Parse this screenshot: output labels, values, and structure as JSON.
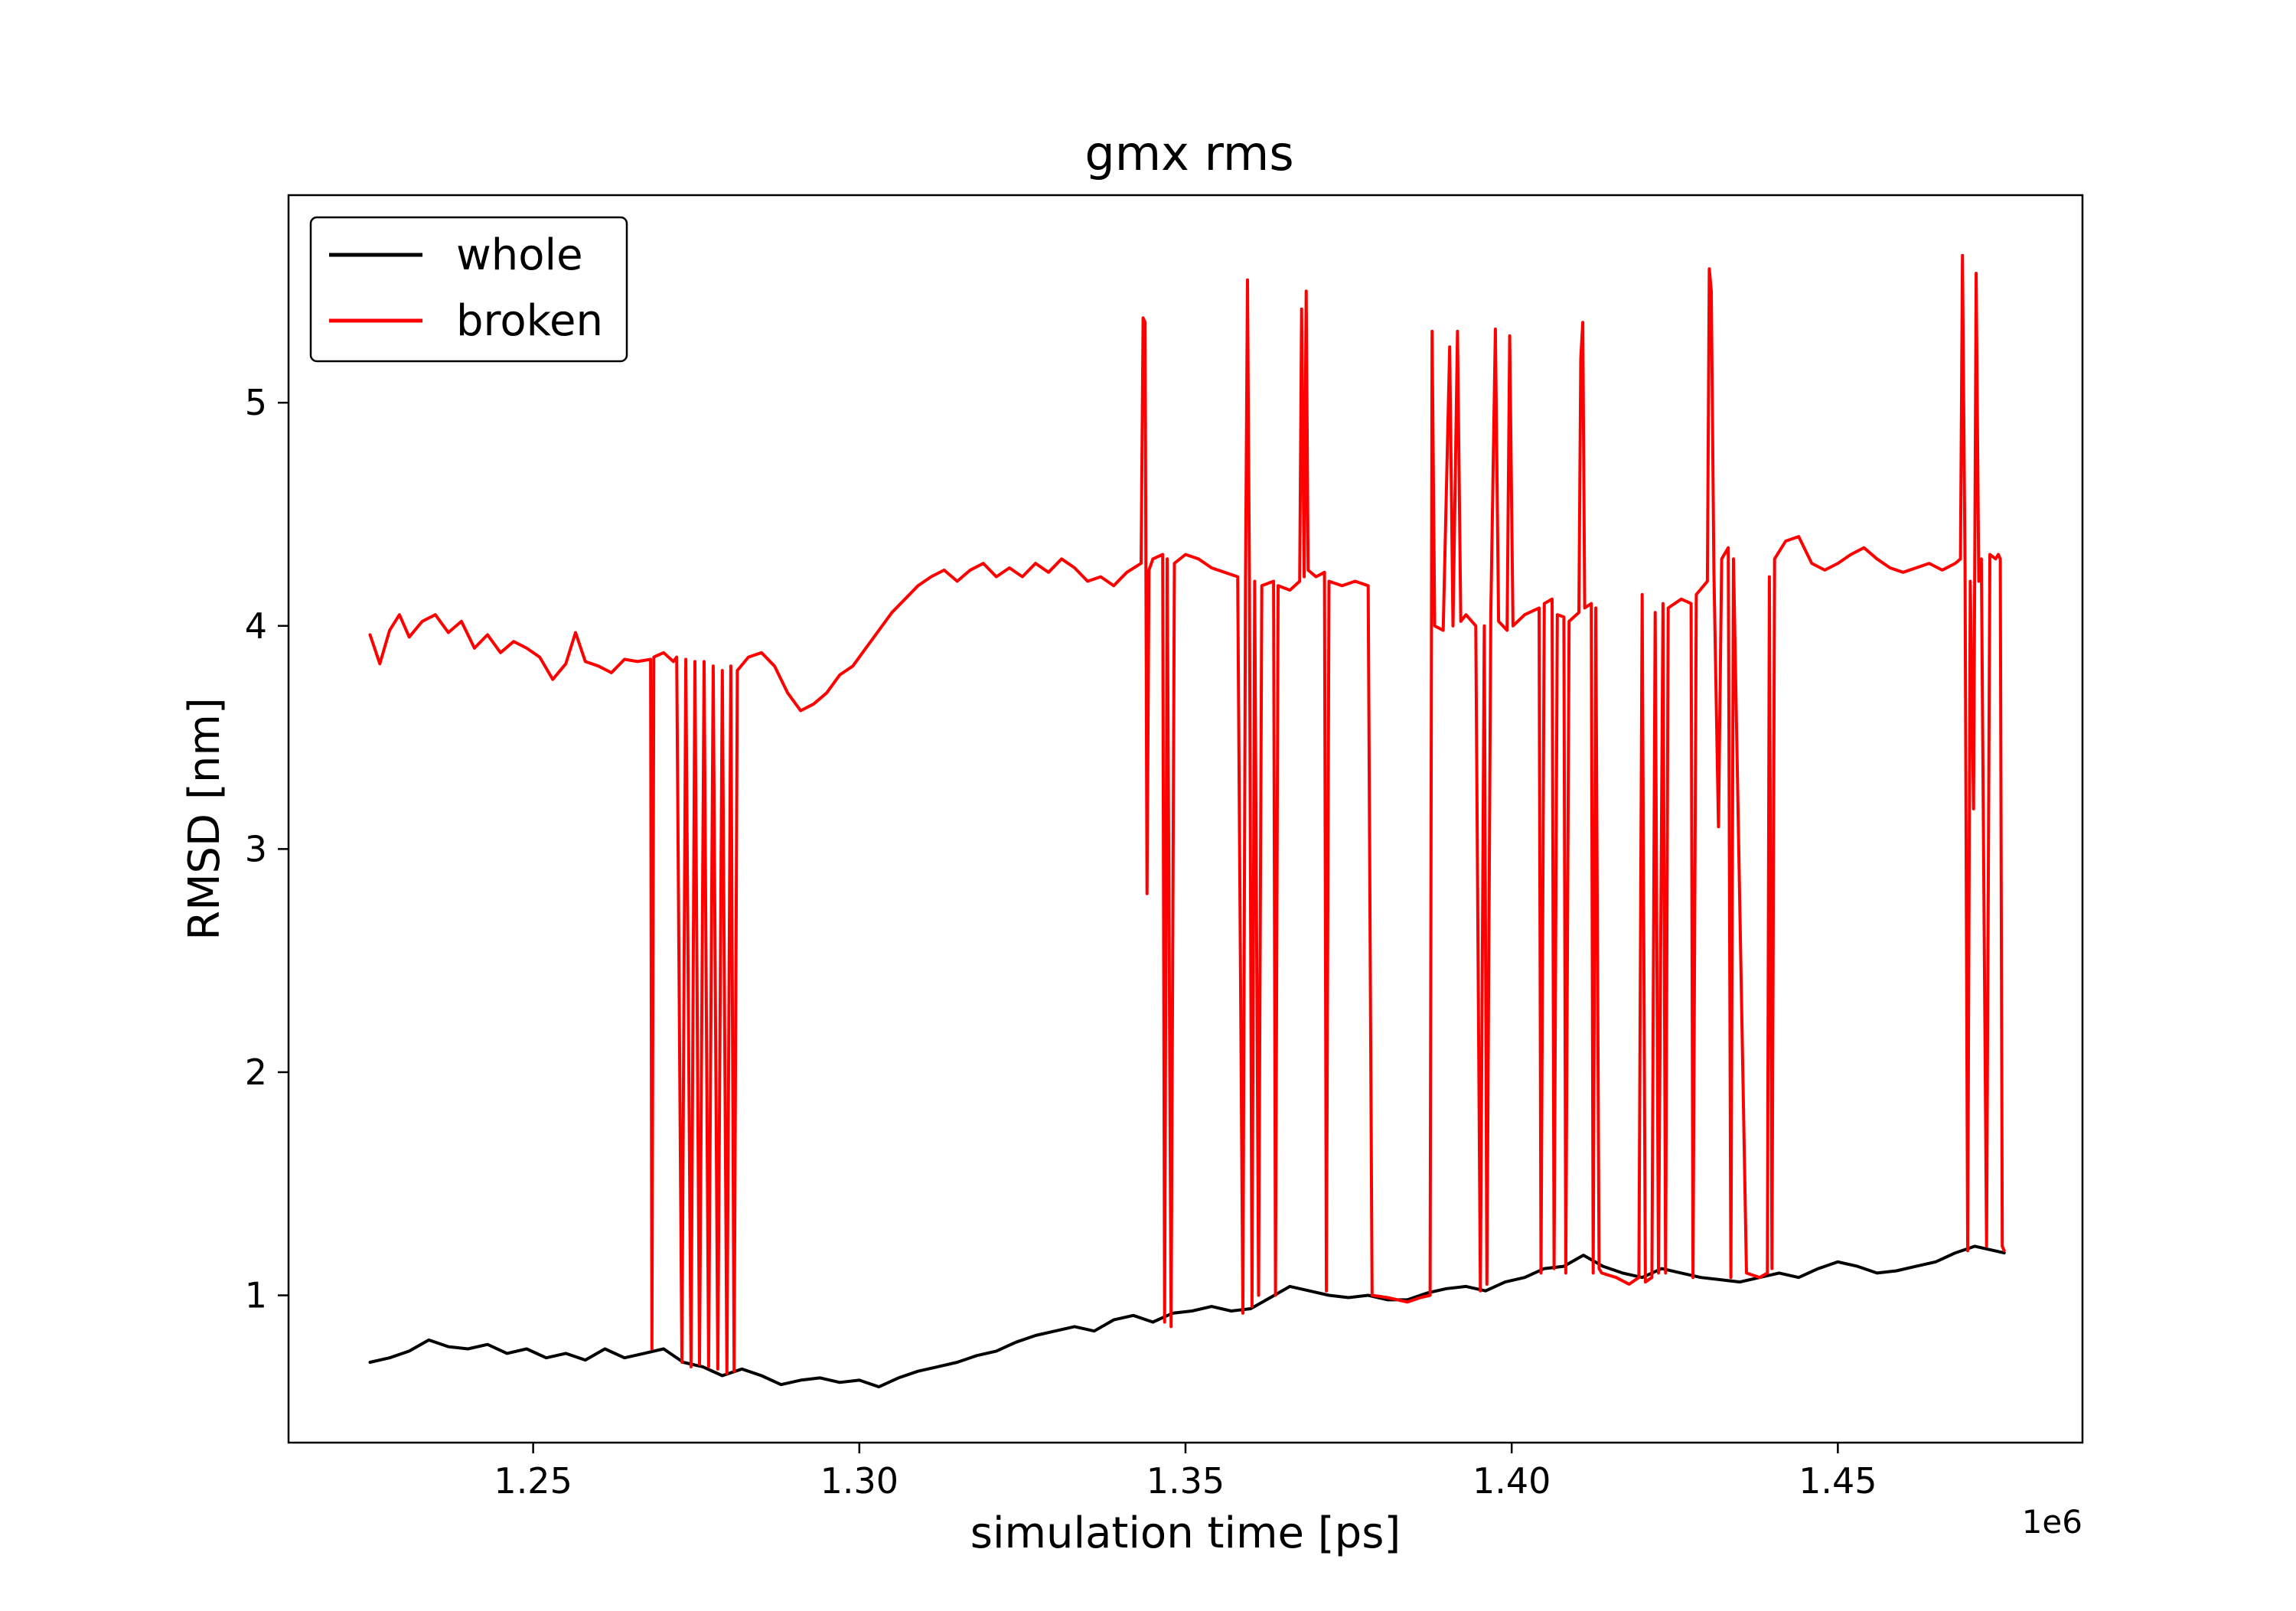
{
  "chart_data": {
    "type": "line",
    "title": "gmx rms",
    "xlabel": "simulation time [ps]",
    "ylabel": "RMSD [nm]",
    "x_offset_label": "1e6",
    "xlim": [
      1.2125,
      1.4875
    ],
    "ylim": [
      0.34,
      5.93
    ],
    "xticks": [
      1.25,
      1.3,
      1.35,
      1.4,
      1.45
    ],
    "xtick_labels": [
      "1.25",
      "1.30",
      "1.35",
      "1.40",
      "1.45"
    ],
    "yticks": [
      1,
      2,
      3,
      4,
      5
    ],
    "ytick_labels": [
      "1",
      "2",
      "3",
      "4",
      "5"
    ],
    "grid": false,
    "legend_position": "upper-left",
    "series": [
      {
        "name": "whole",
        "color": "#000000",
        "points": [
          [
            1.225,
            0.7
          ],
          [
            1.228,
            0.72
          ],
          [
            1.231,
            0.75
          ],
          [
            1.234,
            0.8
          ],
          [
            1.237,
            0.77
          ],
          [
            1.24,
            0.76
          ],
          [
            1.243,
            0.78
          ],
          [
            1.246,
            0.74
          ],
          [
            1.249,
            0.76
          ],
          [
            1.252,
            0.72
          ],
          [
            1.255,
            0.74
          ],
          [
            1.258,
            0.71
          ],
          [
            1.261,
            0.76
          ],
          [
            1.264,
            0.72
          ],
          [
            1.267,
            0.74
          ],
          [
            1.27,
            0.76
          ],
          [
            1.273,
            0.7
          ],
          [
            1.276,
            0.68
          ],
          [
            1.279,
            0.64
          ],
          [
            1.282,
            0.67
          ],
          [
            1.285,
            0.64
          ],
          [
            1.288,
            0.6
          ],
          [
            1.291,
            0.62
          ],
          [
            1.294,
            0.63
          ],
          [
            1.297,
            0.61
          ],
          [
            1.3,
            0.62
          ],
          [
            1.303,
            0.59
          ],
          [
            1.306,
            0.63
          ],
          [
            1.309,
            0.66
          ],
          [
            1.312,
            0.68
          ],
          [
            1.315,
            0.7
          ],
          [
            1.318,
            0.73
          ],
          [
            1.321,
            0.75
          ],
          [
            1.324,
            0.79
          ],
          [
            1.327,
            0.82
          ],
          [
            1.33,
            0.84
          ],
          [
            1.333,
            0.86
          ],
          [
            1.336,
            0.84
          ],
          [
            1.339,
            0.89
          ],
          [
            1.342,
            0.91
          ],
          [
            1.345,
            0.88
          ],
          [
            1.348,
            0.92
          ],
          [
            1.351,
            0.93
          ],
          [
            1.354,
            0.95
          ],
          [
            1.357,
            0.93
          ],
          [
            1.36,
            0.94
          ],
          [
            1.363,
            0.99
          ],
          [
            1.366,
            1.04
          ],
          [
            1.369,
            1.02
          ],
          [
            1.372,
            1.0
          ],
          [
            1.375,
            0.99
          ],
          [
            1.378,
            1.0
          ],
          [
            1.381,
            0.98
          ],
          [
            1.384,
            0.98
          ],
          [
            1.387,
            1.01
          ],
          [
            1.39,
            1.03
          ],
          [
            1.393,
            1.04
          ],
          [
            1.396,
            1.02
          ],
          [
            1.399,
            1.06
          ],
          [
            1.402,
            1.08
          ],
          [
            1.405,
            1.12
          ],
          [
            1.408,
            1.13
          ],
          [
            1.411,
            1.18
          ],
          [
            1.414,
            1.13
          ],
          [
            1.417,
            1.1
          ],
          [
            1.42,
            1.08
          ],
          [
            1.423,
            1.12
          ],
          [
            1.426,
            1.1
          ],
          [
            1.429,
            1.08
          ],
          [
            1.432,
            1.07
          ],
          [
            1.435,
            1.06
          ],
          [
            1.438,
            1.08
          ],
          [
            1.441,
            1.1
          ],
          [
            1.444,
            1.08
          ],
          [
            1.447,
            1.12
          ],
          [
            1.45,
            1.15
          ],
          [
            1.453,
            1.13
          ],
          [
            1.456,
            1.1
          ],
          [
            1.459,
            1.11
          ],
          [
            1.462,
            1.13
          ],
          [
            1.465,
            1.15
          ],
          [
            1.468,
            1.19
          ],
          [
            1.471,
            1.22
          ],
          [
            1.474,
            1.2
          ],
          [
            1.4755,
            1.19
          ]
        ]
      },
      {
        "name": "broken",
        "color": "#ff0000",
        "points": [
          [
            1.225,
            3.96
          ],
          [
            1.2265,
            3.83
          ],
          [
            1.228,
            3.98
          ],
          [
            1.2295,
            4.05
          ],
          [
            1.231,
            3.95
          ],
          [
            1.233,
            4.02
          ],
          [
            1.235,
            4.05
          ],
          [
            1.237,
            3.97
          ],
          [
            1.239,
            4.02
          ],
          [
            1.241,
            3.9
          ],
          [
            1.243,
            3.96
          ],
          [
            1.245,
            3.88
          ],
          [
            1.247,
            3.93
          ],
          [
            1.249,
            3.9
          ],
          [
            1.251,
            3.86
          ],
          [
            1.253,
            3.76
          ],
          [
            1.255,
            3.83
          ],
          [
            1.2565,
            3.97
          ],
          [
            1.258,
            3.84
          ],
          [
            1.26,
            3.82
          ],
          [
            1.262,
            3.79
          ],
          [
            1.264,
            3.85
          ],
          [
            1.266,
            3.84
          ],
          [
            1.268,
            3.85
          ],
          [
            1.2682,
            0.76
          ],
          [
            1.2685,
            3.86
          ],
          [
            1.27,
            3.88
          ],
          [
            1.2715,
            3.84
          ],
          [
            1.272,
            3.86
          ],
          [
            1.2728,
            0.7
          ],
          [
            1.2734,
            3.85
          ],
          [
            1.2742,
            0.68
          ],
          [
            1.2748,
            3.84
          ],
          [
            1.2755,
            0.69
          ],
          [
            1.2762,
            3.84
          ],
          [
            1.2769,
            0.68
          ],
          [
            1.2776,
            3.82
          ],
          [
            1.2783,
            0.67
          ],
          [
            1.279,
            3.8
          ],
          [
            1.2797,
            0.65
          ],
          [
            1.2803,
            3.82
          ],
          [
            1.2808,
            0.66
          ],
          [
            1.2813,
            3.8
          ],
          [
            1.283,
            3.86
          ],
          [
            1.285,
            3.88
          ],
          [
            1.287,
            3.82
          ],
          [
            1.289,
            3.7
          ],
          [
            1.291,
            3.62
          ],
          [
            1.293,
            3.65
          ],
          [
            1.295,
            3.7
          ],
          [
            1.297,
            3.78
          ],
          [
            1.299,
            3.82
          ],
          [
            1.301,
            3.9
          ],
          [
            1.303,
            3.98
          ],
          [
            1.305,
            4.06
          ],
          [
            1.307,
            4.12
          ],
          [
            1.309,
            4.18
          ],
          [
            1.311,
            4.22
          ],
          [
            1.313,
            4.25
          ],
          [
            1.315,
            4.2
          ],
          [
            1.317,
            4.25
          ],
          [
            1.319,
            4.28
          ],
          [
            1.321,
            4.22
          ],
          [
            1.323,
            4.26
          ],
          [
            1.325,
            4.22
          ],
          [
            1.327,
            4.28
          ],
          [
            1.329,
            4.24
          ],
          [
            1.331,
            4.3
          ],
          [
            1.333,
            4.26
          ],
          [
            1.335,
            4.2
          ],
          [
            1.337,
            4.22
          ],
          [
            1.339,
            4.18
          ],
          [
            1.341,
            4.24
          ],
          [
            1.3432,
            4.28
          ],
          [
            1.3435,
            5.38
          ],
          [
            1.3438,
            5.36
          ],
          [
            1.3441,
            2.8
          ],
          [
            1.3444,
            4.25
          ],
          [
            1.345,
            4.3
          ],
          [
            1.3465,
            4.32
          ],
          [
            1.3468,
            0.88
          ],
          [
            1.3472,
            4.3
          ],
          [
            1.3478,
            0.86
          ],
          [
            1.3483,
            4.28
          ],
          [
            1.35,
            4.32
          ],
          [
            1.352,
            4.3
          ],
          [
            1.354,
            4.26
          ],
          [
            1.356,
            4.24
          ],
          [
            1.358,
            4.22
          ],
          [
            1.3588,
            0.92
          ],
          [
            1.3592,
            4.2
          ],
          [
            1.3595,
            5.55
          ],
          [
            1.3598,
            4.22
          ],
          [
            1.3602,
            0.95
          ],
          [
            1.3606,
            4.2
          ],
          [
            1.3612,
            1.0
          ],
          [
            1.3617,
            4.18
          ],
          [
            1.3635,
            4.2
          ],
          [
            1.3638,
            1.0
          ],
          [
            1.3642,
            4.18
          ],
          [
            1.366,
            4.16
          ],
          [
            1.3675,
            4.2
          ],
          [
            1.3678,
            5.42
          ],
          [
            1.3682,
            4.22
          ],
          [
            1.3685,
            5.5
          ],
          [
            1.3688,
            4.25
          ],
          [
            1.37,
            4.22
          ],
          [
            1.3713,
            4.24
          ],
          [
            1.3716,
            1.02
          ],
          [
            1.372,
            4.2
          ],
          [
            1.374,
            4.18
          ],
          [
            1.376,
            4.2
          ],
          [
            1.378,
            4.18
          ],
          [
            1.3786,
            1.0
          ],
          [
            1.381,
            0.99
          ],
          [
            1.384,
            0.97
          ],
          [
            1.386,
            0.99
          ],
          [
            1.3875,
            1.0
          ],
          [
            1.3878,
            5.32
          ],
          [
            1.3882,
            4.0
          ],
          [
            1.3895,
            3.98
          ],
          [
            1.3905,
            5.25
          ],
          [
            1.391,
            4.0
          ],
          [
            1.3917,
            5.32
          ],
          [
            1.3922,
            4.02
          ],
          [
            1.393,
            4.05
          ],
          [
            1.3945,
            4.0
          ],
          [
            1.3952,
            1.02
          ],
          [
            1.3958,
            4.0
          ],
          [
            1.3962,
            1.05
          ],
          [
            1.3968,
            4.05
          ],
          [
            1.3975,
            5.33
          ],
          [
            1.398,
            4.02
          ],
          [
            1.3993,
            3.98
          ],
          [
            1.3997,
            5.3
          ],
          [
            1.4002,
            4.0
          ],
          [
            1.402,
            4.05
          ],
          [
            1.4042,
            4.08
          ],
          [
            1.4045,
            1.1
          ],
          [
            1.405,
            4.1
          ],
          [
            1.4062,
            4.12
          ],
          [
            1.4065,
            1.12
          ],
          [
            1.407,
            4.05
          ],
          [
            1.408,
            4.04
          ],
          [
            1.4083,
            1.1
          ],
          [
            1.4088,
            4.02
          ],
          [
            1.4103,
            4.06
          ],
          [
            1.4106,
            5.2
          ],
          [
            1.4109,
            5.36
          ],
          [
            1.4112,
            4.08
          ],
          [
            1.4122,
            4.1
          ],
          [
            1.4125,
            1.1
          ],
          [
            1.4129,
            4.08
          ],
          [
            1.4134,
            1.12
          ],
          [
            1.4138,
            1.1
          ],
          [
            1.416,
            1.08
          ],
          [
            1.418,
            1.05
          ],
          [
            1.4195,
            1.08
          ],
          [
            1.42,
            4.14
          ],
          [
            1.4205,
            1.06
          ],
          [
            1.4215,
            1.08
          ],
          [
            1.422,
            4.06
          ],
          [
            1.4225,
            1.1
          ],
          [
            1.4232,
            4.1
          ],
          [
            1.4236,
            1.1
          ],
          [
            1.424,
            4.08
          ],
          [
            1.426,
            4.12
          ],
          [
            1.4275,
            4.1
          ],
          [
            1.4278,
            1.08
          ],
          [
            1.4283,
            4.14
          ],
          [
            1.43,
            4.2
          ],
          [
            1.4303,
            5.6
          ],
          [
            1.4306,
            5.5
          ],
          [
            1.431,
            4.25
          ],
          [
            1.4317,
            3.1
          ],
          [
            1.4322,
            4.3
          ],
          [
            1.4332,
            4.35
          ],
          [
            1.4336,
            1.08
          ],
          [
            1.434,
            4.3
          ],
          [
            1.436,
            1.1
          ],
          [
            1.438,
            1.08
          ],
          [
            1.4392,
            1.1
          ],
          [
            1.4395,
            4.22
          ],
          [
            1.4399,
            1.12
          ],
          [
            1.4403,
            4.3
          ],
          [
            1.442,
            4.38
          ],
          [
            1.444,
            4.4
          ],
          [
            1.446,
            4.28
          ],
          [
            1.448,
            4.25
          ],
          [
            1.45,
            4.28
          ],
          [
            1.452,
            4.32
          ],
          [
            1.454,
            4.35
          ],
          [
            1.456,
            4.3
          ],
          [
            1.458,
            4.26
          ],
          [
            1.46,
            4.24
          ],
          [
            1.462,
            4.26
          ],
          [
            1.464,
            4.28
          ],
          [
            1.466,
            4.25
          ],
          [
            1.468,
            4.28
          ],
          [
            1.4688,
            4.3
          ],
          [
            1.4691,
            5.66
          ],
          [
            1.4695,
            4.25
          ],
          [
            1.4699,
            1.2
          ],
          [
            1.4703,
            4.2
          ],
          [
            1.4708,
            3.18
          ],
          [
            1.4712,
            5.58
          ],
          [
            1.4716,
            4.2
          ],
          [
            1.472,
            4.3
          ],
          [
            1.4728,
            1.22
          ],
          [
            1.4733,
            4.32
          ],
          [
            1.4742,
            4.3
          ],
          [
            1.4746,
            4.32
          ],
          [
            1.4749,
            4.3
          ],
          [
            1.4752,
            1.22
          ],
          [
            1.4755,
            1.2
          ]
        ]
      }
    ]
  }
}
